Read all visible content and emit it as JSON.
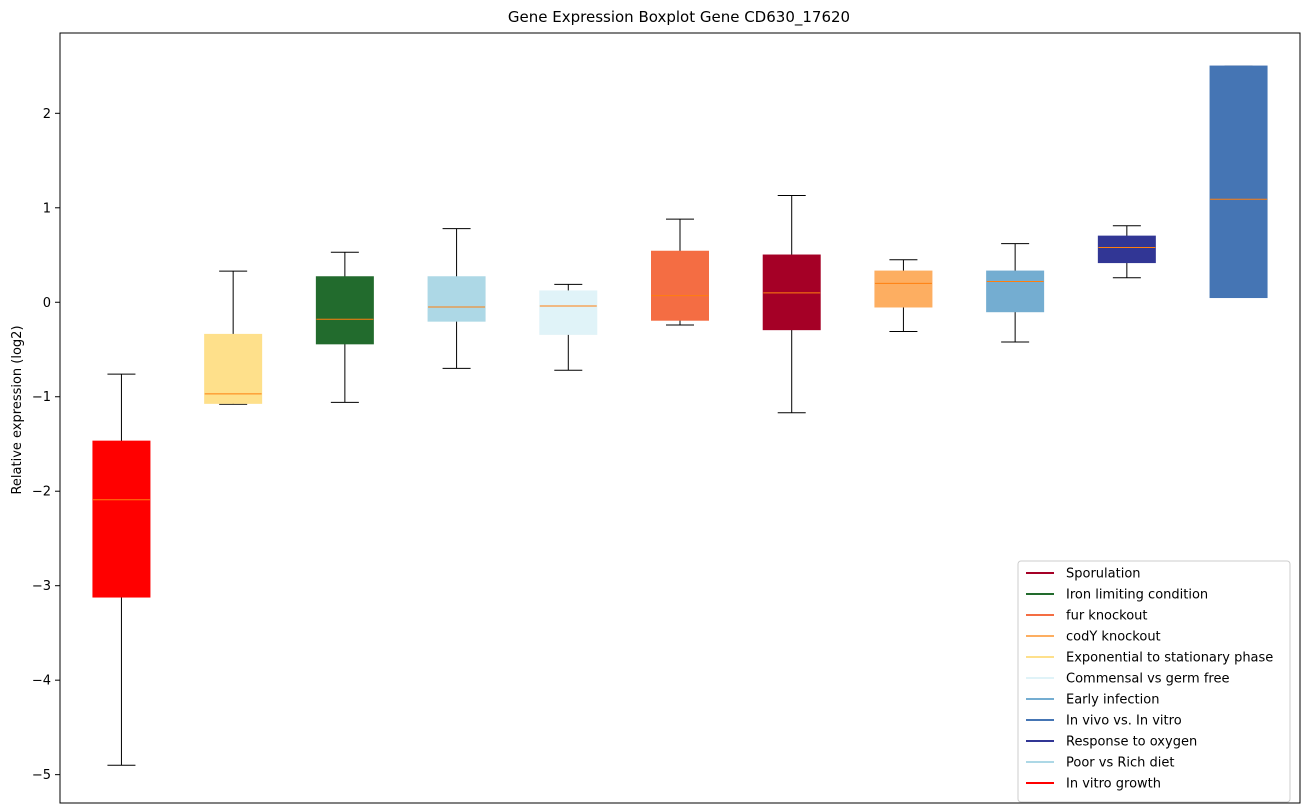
{
  "chart_data": {
    "type": "boxplot",
    "title": "Gene Expression Boxplot Gene CD630_17620",
    "xlabel": "",
    "ylabel": "Relative expression (log2)",
    "ylim": [
      -5.3,
      2.85
    ],
    "yticks": [
      -5,
      -4,
      -3,
      -2,
      -1,
      0,
      1,
      2
    ],
    "ytick_labels": [
      "−5",
      "−4",
      "−3",
      "−2",
      "−1",
      "0",
      "1",
      "2"
    ],
    "median_color": "#ff7f0e",
    "legend_position": "lower-right",
    "boxes": [
      {
        "group": "In vitro growth",
        "color": "#ff0000",
        "whisker_low": -4.9,
        "q1": -3.12,
        "median": -2.09,
        "q3": -1.47,
        "whisker_high": -0.76
      },
      {
        "group": "Exponential to stationary phase",
        "color": "#fee08b",
        "whisker_low": -1.08,
        "q1": -1.07,
        "median": -0.97,
        "q3": -0.34,
        "whisker_high": 0.33
      },
      {
        "group": "Iron limiting condition",
        "color": "#226b2d",
        "whisker_low": -1.06,
        "q1": -0.44,
        "median": -0.18,
        "q3": 0.27,
        "whisker_high": 0.53
      },
      {
        "group": "Poor vs Rich diet",
        "color": "#add8e6",
        "whisker_low": -0.7,
        "q1": -0.2,
        "median": -0.05,
        "q3": 0.27,
        "whisker_high": 0.78
      },
      {
        "group": "Commensal vs germ free",
        "color": "#e0f3f8",
        "whisker_low": -0.72,
        "q1": -0.34,
        "median": -0.04,
        "q3": 0.12,
        "whisker_high": 0.19
      },
      {
        "group": "fur knockout",
        "color": "#f46d43",
        "whisker_low": -0.24,
        "q1": -0.19,
        "median": 0.07,
        "q3": 0.54,
        "whisker_high": 0.88
      },
      {
        "group": "Sporulation",
        "color": "#a50026",
        "whisker_low": -1.17,
        "q1": -0.29,
        "median": 0.1,
        "q3": 0.5,
        "whisker_high": 1.13
      },
      {
        "group": "codY knockout",
        "color": "#fdae61",
        "whisker_low": -0.31,
        "q1": -0.05,
        "median": 0.2,
        "q3": 0.33,
        "whisker_high": 0.45
      },
      {
        "group": "Early infection",
        "color": "#74add1",
        "whisker_low": -0.42,
        "q1": -0.1,
        "median": 0.22,
        "q3": 0.33,
        "whisker_high": 0.62
      },
      {
        "group": "Response to oxygen",
        "color": "#313695",
        "whisker_low": 0.26,
        "q1": 0.42,
        "median": 0.58,
        "q3": 0.7,
        "whisker_high": 0.81
      },
      {
        "group": "In vivo vs. In vitro",
        "color": "#4575b4",
        "whisker_low": 0.05,
        "q1": 0.05,
        "median": 1.09,
        "q3": 2.5,
        "whisker_high": 2.5
      }
    ],
    "legend": [
      {
        "label": "Sporulation",
        "color": "#a50026"
      },
      {
        "label": "Iron limiting condition",
        "color": "#226b2d"
      },
      {
        "label": "fur knockout",
        "color": "#f46d43"
      },
      {
        "label": "codY knockout",
        "color": "#fdae61"
      },
      {
        "label": "Exponential to stationary phase",
        "color": "#fee08b"
      },
      {
        "label": "Commensal vs germ free",
        "color": "#e0f3f8"
      },
      {
        "label": "Early infection",
        "color": "#74add1"
      },
      {
        "label": "In vivo vs. In vitro",
        "color": "#4575b4"
      },
      {
        "label": "Response to oxygen",
        "color": "#313695"
      },
      {
        "label": "Poor vs Rich diet",
        "color": "#add8e6"
      },
      {
        "label": "In vitro growth",
        "color": "#ff0000"
      }
    ]
  }
}
